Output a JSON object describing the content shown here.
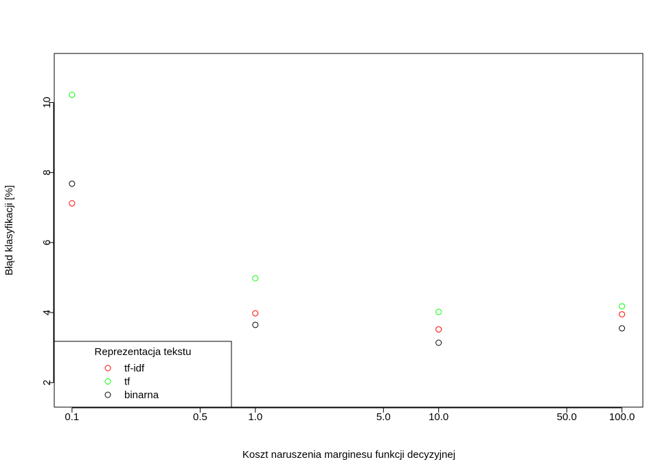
{
  "chart_data": {
    "type": "scatter",
    "x_scale": "log",
    "xlabel": "Koszt naruszenia marginesu funkcji decyzyjnej",
    "ylabel": "Błąd klasyfikacji [%]",
    "xlim": [
      0.08,
      130
    ],
    "ylim": [
      1.3,
      11.4
    ],
    "x_ticks": [
      0.1,
      0.5,
      1.0,
      5.0,
      10.0,
      50.0,
      100.0
    ],
    "x_tick_labels": [
      "0.1",
      "0.5",
      "1.0",
      "5.0",
      "10.0",
      "50.0",
      "100.0"
    ],
    "y_ticks": [
      2,
      4,
      6,
      8,
      10
    ],
    "y_tick_labels": [
      "2",
      "4",
      "6",
      "8",
      "10"
    ],
    "grid": false,
    "series": [
      {
        "name": "tf-idf",
        "color": "#ff0000",
        "x": [
          0.1,
          1.0,
          10.0,
          100.0
        ],
        "values": [
          7.12,
          3.98,
          3.52,
          3.95
        ]
      },
      {
        "name": "tf",
        "color": "#00ff00",
        "x": [
          0.1,
          1.0,
          10.0,
          100.0
        ],
        "values": [
          10.22,
          4.98,
          4.02,
          4.18
        ]
      },
      {
        "name": "binarna",
        "color": "#000000",
        "x": [
          0.1,
          1.0,
          10.0,
          100.0
        ],
        "values": [
          7.68,
          3.65,
          3.14,
          3.55
        ]
      }
    ],
    "legend": {
      "title": "Reprezentacja tekstu",
      "placement": "bottom-left",
      "entries": [
        "tf-idf",
        "tf",
        "binarna"
      ]
    }
  }
}
